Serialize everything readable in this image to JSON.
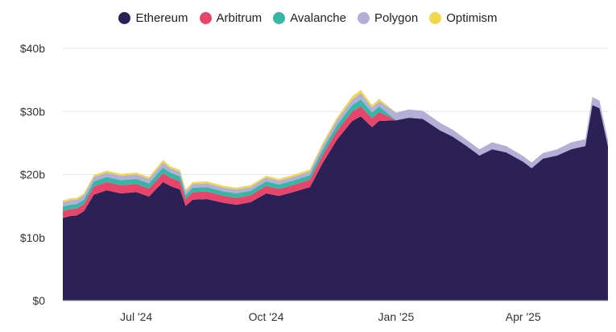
{
  "chart_data": {
    "type": "area",
    "stacked": true,
    "legend_position": "top-center",
    "grid": "horizontal",
    "ylim": [
      0,
      40
    ],
    "y_ticks": [
      "$0",
      "$10b",
      "$20b",
      "$30b",
      "$40b"
    ],
    "x_ticks": [
      "Jul '24",
      "Oct '24",
      "Jan '25",
      "Apr '25"
    ],
    "x_range": [
      "2024-05-10",
      "2025-05-31"
    ],
    "x": [
      "2024-05-10",
      "2024-05-15",
      "2024-05-20",
      "2024-05-25",
      "2024-06-01",
      "2024-06-10",
      "2024-06-20",
      "2024-07-01",
      "2024-07-10",
      "2024-07-20",
      "2024-07-25",
      "2024-08-01",
      "2024-08-05",
      "2024-08-10",
      "2024-08-20",
      "2024-09-01",
      "2024-09-10",
      "2024-09-20",
      "2024-10-01",
      "2024-10-10",
      "2024-10-20",
      "2024-11-01",
      "2024-11-10",
      "2024-11-20",
      "2024-12-01",
      "2024-12-07",
      "2024-12-15",
      "2024-12-20",
      "2025-01-01",
      "2025-01-10",
      "2025-01-20",
      "2025-02-01",
      "2025-02-10",
      "2025-02-20",
      "2025-03-01",
      "2025-03-10",
      "2025-03-20",
      "2025-04-01",
      "2025-04-07",
      "2025-04-15",
      "2025-04-25",
      "2025-05-05",
      "2025-05-15",
      "2025-05-20",
      "2025-05-25",
      "2025-05-31"
    ],
    "series": [
      {
        "name": "Ethereum",
        "color": "#2b2157",
        "values": [
          13.1,
          13.4,
          13.5,
          14.2,
          16.8,
          17.5,
          17.0,
          17.2,
          16.5,
          18.8,
          18.2,
          17.6,
          15.0,
          16.0,
          16.1,
          15.5,
          15.2,
          15.6,
          17.0,
          16.6,
          17.2,
          18.0,
          21.8,
          25.5,
          28.5,
          29.2,
          27.5,
          28.5,
          28.6,
          29.0,
          28.8,
          27.0,
          26.0,
          24.5,
          23.0,
          24.0,
          23.5,
          22.0,
          21.0,
          22.5,
          23.0,
          24.0,
          24.5,
          31.0,
          30.5,
          24.5
        ]
      },
      {
        "name": "Arbitrum",
        "color": "#e8456b",
        "values": [
          1.1,
          1.1,
          1.1,
          1.1,
          1.3,
          1.3,
          1.3,
          1.3,
          1.3,
          1.4,
          1.3,
          1.3,
          1.1,
          1.2,
          1.2,
          1.1,
          1.1,
          1.1,
          1.2,
          1.1,
          1.1,
          1.2,
          1.3,
          1.4,
          1.5,
          1.6,
          1.4,
          1.4,
          0,
          0,
          0,
          0,
          0,
          0,
          0,
          0,
          0,
          0,
          0,
          0,
          0,
          0,
          0,
          0,
          0,
          0
        ]
      },
      {
        "name": "Avalanche",
        "color": "#35b7a5",
        "values": [
          0.7,
          0.7,
          0.7,
          0.7,
          0.8,
          0.8,
          0.8,
          0.8,
          0.8,
          0.9,
          0.8,
          0.8,
          0.6,
          0.7,
          0.7,
          0.7,
          0.7,
          0.7,
          0.7,
          0.7,
          0.7,
          0.7,
          0.8,
          0.9,
          1.0,
          1.1,
          0.9,
          0.9,
          0,
          0,
          0,
          0,
          0,
          0,
          0,
          0,
          0,
          0,
          0,
          0,
          0,
          0,
          0,
          0,
          0,
          0
        ]
      },
      {
        "name": "Polygon",
        "color": "#b3afd6",
        "values": [
          0.7,
          0.7,
          0.7,
          0.7,
          0.7,
          0.7,
          0.7,
          0.7,
          0.7,
          0.8,
          0.7,
          0.7,
          0.6,
          0.6,
          0.6,
          0.6,
          0.6,
          0.6,
          0.6,
          0.6,
          0.6,
          0.6,
          0.7,
          0.8,
          0.9,
          1.0,
          0.8,
          0.8,
          1.2,
          1.3,
          1.3,
          1.2,
          1.1,
          1.0,
          1.0,
          1.1,
          1.0,
          0.9,
          0.9,
          0.9,
          1.0,
          1.1,
          1.1,
          1.3,
          1.2,
          1.0
        ]
      },
      {
        "name": "Optimism",
        "color": "#f2d64b",
        "values": [
          0.3,
          0.3,
          0.3,
          0.3,
          0.3,
          0.3,
          0.3,
          0.3,
          0.3,
          0.4,
          0.3,
          0.3,
          0.3,
          0.3,
          0.3,
          0.3,
          0.3,
          0.3,
          0.3,
          0.3,
          0.3,
          0.3,
          0.4,
          0.4,
          0.5,
          0.5,
          0.4,
          0.4,
          0,
          0,
          0,
          0,
          0,
          0,
          0,
          0,
          0,
          0,
          0,
          0,
          0,
          0,
          0,
          0,
          0,
          0
        ]
      }
    ]
  }
}
